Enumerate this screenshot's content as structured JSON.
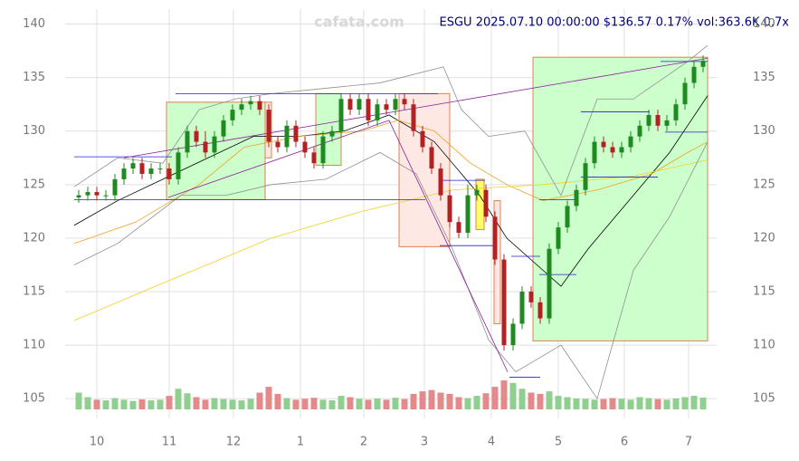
{
  "chart_data": {
    "type": "candlestick",
    "title": "ESGU 2025.07.10 00:00:00 $136.57 0.17% vol:363.6K 0.7x",
    "watermark": "cafata.com",
    "open": [
      123.8,
      124,
      124.3,
      124,
      124,
      125.5,
      126.5,
      127,
      126,
      126.5,
      126.5,
      125.5,
      128,
      130,
      129,
      128,
      129.5,
      131,
      132,
      132.5,
      132.8,
      132,
      129,
      128.5,
      130.5,
      129,
      128,
      127,
      129.5,
      130,
      133,
      132,
      133,
      131,
      132.5,
      132,
      133,
      132.5,
      130,
      128.5,
      126.5,
      124,
      121.5,
      120.5,
      124,
      124.5,
      122,
      118,
      110,
      112,
      115,
      114,
      112.5,
      119,
      121,
      123,
      124.5,
      127,
      129,
      128.5,
      128,
      128.5,
      129.5,
      130.5,
      131.5,
      130.5,
      131,
      132.5,
      134.5,
      136
    ],
    "high": [
      124.5,
      124.8,
      124.8,
      124.5,
      126,
      127,
      127.5,
      127.5,
      127,
      127,
      127,
      128.5,
      130.5,
      130.5,
      130,
      130,
      131.5,
      132.5,
      133,
      133.3,
      133.3,
      132.5,
      129.5,
      131,
      131,
      129.5,
      128.5,
      130,
      130.5,
      133.5,
      133.5,
      133.5,
      133.5,
      133,
      133,
      133.5,
      133.5,
      133,
      130.5,
      129,
      127,
      124.5,
      122,
      125,
      125,
      125,
      122.5,
      118.5,
      112.5,
      115.5,
      115.5,
      114.5,
      119.5,
      121.5,
      123.5,
      125,
      127.5,
      129.5,
      129.5,
      129,
      129,
      130,
      131,
      132,
      132,
      131.5,
      133,
      135,
      136.5,
      137.07
    ],
    "low": [
      123.3,
      123.5,
      123.5,
      123.5,
      123.5,
      125,
      126,
      125.5,
      125.5,
      126,
      125,
      125,
      127.5,
      128.5,
      127.5,
      127.5,
      129,
      130.5,
      131.5,
      132,
      131.5,
      128.5,
      128,
      128,
      128.5,
      127.5,
      126.5,
      126.5,
      129,
      129.5,
      131.5,
      131.5,
      130.5,
      130.5,
      131.5,
      131.5,
      132,
      129.5,
      128,
      126,
      123.5,
      121,
      120,
      120,
      123.5,
      121.5,
      117.5,
      109.5,
      109.5,
      111.5,
      113.5,
      112,
      112,
      118.5,
      120.5,
      122.5,
      124,
      126.5,
      128,
      127.5,
      127.5,
      128,
      129,
      130,
      130,
      130,
      130.5,
      132,
      134,
      135.5
    ],
    "close": [
      124,
      124.3,
      124,
      124,
      125.5,
      126.5,
      127,
      126,
      126.5,
      126.5,
      125.5,
      128,
      130,
      129,
      128,
      129.5,
      131,
      132,
      132.5,
      132.8,
      132,
      129,
      128.5,
      130.5,
      129,
      128,
      127,
      129.5,
      130,
      133,
      132,
      133,
      131,
      132.5,
      132,
      133,
      132.5,
      130,
      128.5,
      126.5,
      124,
      121.5,
      120.5,
      124,
      124.5,
      122,
      118,
      110,
      112,
      115,
      114,
      112.5,
      119,
      121,
      123,
      124.5,
      127,
      129,
      128.5,
      128,
      128.5,
      129.5,
      130.5,
      131.5,
      130.5,
      131,
      132.5,
      134.5,
      136,
      136.57
    ],
    "volume": [
      520,
      380,
      300,
      280,
      350,
      300,
      260,
      310,
      280,
      300,
      420,
      640,
      500,
      380,
      300,
      350,
      320,
      300,
      280,
      330,
      520,
      700,
      480,
      350,
      300,
      330,
      360,
      300,
      280,
      420,
      380,
      330,
      300,
      340,
      300,
      360,
      320,
      480,
      560,
      600,
      520,
      480,
      380,
      350,
      420,
      500,
      700,
      900,
      820,
      640,
      520,
      480,
      560,
      420,
      380,
      340,
      330,
      300,
      320,
      350,
      330,
      300,
      380,
      350,
      320,
      300,
      340,
      380,
      420,
      364
    ],
    "up_color": "#1f8a1f",
    "down_color": "#b22222",
    "volume_up_color": "#8fcf8f",
    "volume_down_color": "#e58a8a",
    "xlim": [
      -0.5,
      69.5
    ],
    "xticks": [
      {
        "value": 2.0,
        "label": "10"
      },
      {
        "value": 10.0,
        "label": "11"
      },
      {
        "value": 17.1,
        "label": "12"
      },
      {
        "value": 24.5,
        "label": "1"
      },
      {
        "value": 31.5,
        "label": "2"
      },
      {
        "value": 38.2,
        "label": "3"
      },
      {
        "value": 45.6,
        "label": "4"
      },
      {
        "value": 53.0,
        "label": "5"
      },
      {
        "value": 60.3,
        "label": "6"
      },
      {
        "value": 67.4,
        "label": "7"
      }
    ],
    "ylim": [
      104,
      141.4
    ],
    "yticks": [
      105,
      110,
      115,
      120,
      125,
      130,
      135,
      140
    ],
    "grid": true,
    "overlays": [
      {
        "color": "#000000",
        "x": [
          -0.5,
          4.3,
          9.3,
          14.3,
          19.3,
          24.3,
          29.3,
          34.3,
          39.3,
          44.3,
          47.3,
          51.3,
          53.3,
          56.3,
          61.3,
          65.3,
          69.5
        ],
        "values": [
          121.2,
          123.5,
          125.5,
          127.5,
          129.5,
          129.5,
          130,
          131.5,
          129,
          124,
          120,
          117,
          115.5,
          119,
          124,
          128,
          133.3
        ]
      },
      {
        "color": "#f0a020",
        "x": [
          -0.5,
          6.3,
          13.3,
          18.3,
          24.3,
          31.3,
          35.3,
          39.3,
          43.3,
          47.3,
          51.3,
          57.3,
          63.3,
          67.3,
          69.5
        ],
        "values": [
          119.5,
          121.5,
          125,
          128.5,
          129.5,
          130,
          131,
          130,
          127,
          125,
          123.5,
          124.5,
          126,
          128,
          129
        ]
      },
      {
        "color": "#f5d020",
        "x": [
          -0.5,
          11.3,
          21.3,
          31.3,
          41.3,
          51.3,
          61.3,
          69.5
        ],
        "values": [
          112.3,
          116.5,
          120,
          122.5,
          124.5,
          125,
          125.8,
          127.3
        ]
      },
      {
        "color": "#909090",
        "x": [
          -0.5,
          4.3,
          9.3,
          13.3,
          17.3,
          21.3,
          27.3,
          33.3,
          40.3,
          42.3,
          45.3,
          49.3,
          53.3,
          57.3,
          61.3,
          67.3,
          69.5
        ],
        "values": [
          124.8,
          127.5,
          127,
          132,
          133,
          133.5,
          134,
          134.5,
          136,
          132,
          129.5,
          130,
          124,
          133,
          133,
          136.5,
          138
        ]
      },
      {
        "color": "#909090",
        "x": [
          -0.5,
          4.3,
          11.3,
          16.3,
          21.3,
          27.3,
          33.3,
          37.3,
          41.3,
          45.3,
          48.3,
          53.3,
          57.3,
          61.3,
          65.3,
          69.5
        ],
        "values": [
          117.5,
          119.5,
          124,
          124,
          125,
          125.5,
          128,
          126,
          119,
          110.5,
          107.5,
          110,
          105,
          117,
          122,
          129
        ]
      }
    ],
    "zones": [
      {
        "x": [
          9.7,
          20.6
        ],
        "y": [
          123.6,
          132.7
        ],
        "color": "#ccffcc"
      },
      {
        "x": [
          20.6,
          21.3
        ],
        "y": [
          127.5,
          132.7
        ],
        "color": "#fde8e4"
      },
      {
        "x": [
          26.2,
          29.0
        ],
        "y": [
          126.8,
          133.5
        ],
        "color": "#ccffcc"
      },
      {
        "x": [
          35.4,
          41.0
        ],
        "y": [
          119.2,
          133.5
        ],
        "color": "#fde8e4"
      },
      {
        "x": [
          43.9,
          44.8
        ],
        "y": [
          120.8,
          125.5
        ],
        "color": "#ffff66"
      },
      {
        "x": [
          45.9,
          46.6
        ],
        "y": [
          112.0,
          123.5
        ],
        "color": "#fde8e4"
      },
      {
        "x": [
          50.2,
          69.5
        ],
        "y": [
          110.4,
          136.9
        ],
        "color": "#ccffcc"
      }
    ],
    "levels": [
      {
        "x": [
          -0.5,
          10.3
        ],
        "y": 127.6
      },
      {
        "x": [
          -0.5,
          38.3
        ],
        "y": 123.6
      },
      {
        "x": [
          10.7,
          39.7
        ],
        "y": 133.5
      },
      {
        "x": [
          39.9,
          44.9
        ],
        "y": 125.4
      },
      {
        "x": [
          39.9,
          45.9
        ],
        "y": 119.3
      },
      {
        "x": [
          47.8,
          51.0
        ],
        "y": 118.3
      },
      {
        "x": [
          50.9,
          55.0
        ],
        "y": 116.6
      },
      {
        "x": [
          50.9,
          55.0
        ],
        "y": 123.6
      },
      {
        "x": [
          55.5,
          63.1
        ],
        "y": 131.8
      },
      {
        "x": [
          55.5,
          64.0
        ],
        "y": 125.7
      },
      {
        "x": [
          64.8,
          69.5
        ],
        "y": 129.9
      },
      {
        "x": [
          64.3,
          69.5
        ],
        "y": 136.5
      },
      {
        "x": [
          47.6,
          51.0
        ],
        "y": 107.0
      }
    ],
    "level_color": "#2222cc",
    "trendlines": [
      {
        "x": [
          5.0,
          69.5
        ],
        "y": [
          127.5,
          136.8
        ]
      },
      {
        "x": [
          9.9,
          34.3
        ],
        "y": [
          123.8,
          131.0
        ]
      },
      {
        "x": [
          34.3,
          47.4
        ],
        "y": [
          131.0,
          107.5
        ]
      }
    ],
    "trend_color": "#8a1f9a"
  }
}
